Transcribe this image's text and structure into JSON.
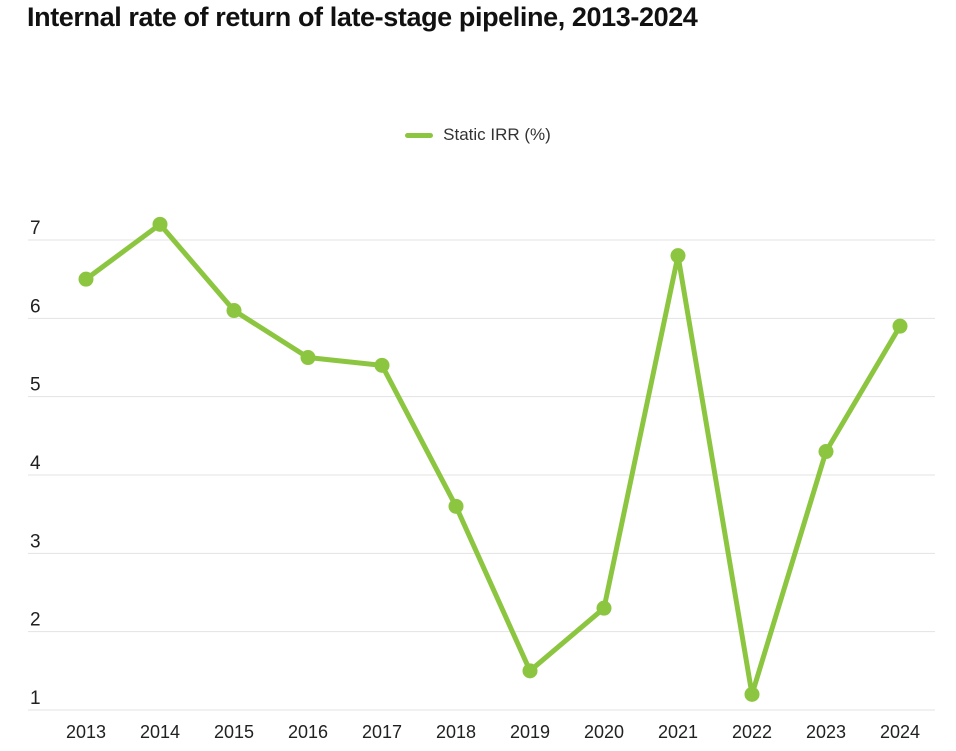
{
  "title": "Internal rate of return of late-stage pipeline, 2013-2024",
  "legend": {
    "label": "Static IRR (%)"
  },
  "colors": {
    "line": "#8cc640",
    "grid": "#e3e3e3",
    "axis_text": "#212121",
    "title_text": "#111111"
  },
  "chart_data": {
    "type": "line",
    "title": "Internal rate of return of late-stage pipeline, 2013-2024",
    "categories": [
      "2013",
      "2014",
      "2015",
      "2016",
      "2017",
      "2018",
      "2019",
      "2020",
      "2021",
      "2022",
      "2023",
      "2024"
    ],
    "series": [
      {
        "name": "Static IRR (%)",
        "color": "#8cc640",
        "values": [
          6.5,
          7.2,
          6.1,
          5.5,
          5.4,
          3.6,
          1.5,
          2.3,
          6.8,
          1.2,
          4.3,
          5.9
        ]
      }
    ],
    "xlabel": "",
    "ylabel": "",
    "ylim": [
      1,
      7.4
    ],
    "yticks": [
      1,
      2,
      3,
      4,
      5,
      6,
      7
    ],
    "grid": true,
    "legend_position": "top-center",
    "markers": true
  }
}
